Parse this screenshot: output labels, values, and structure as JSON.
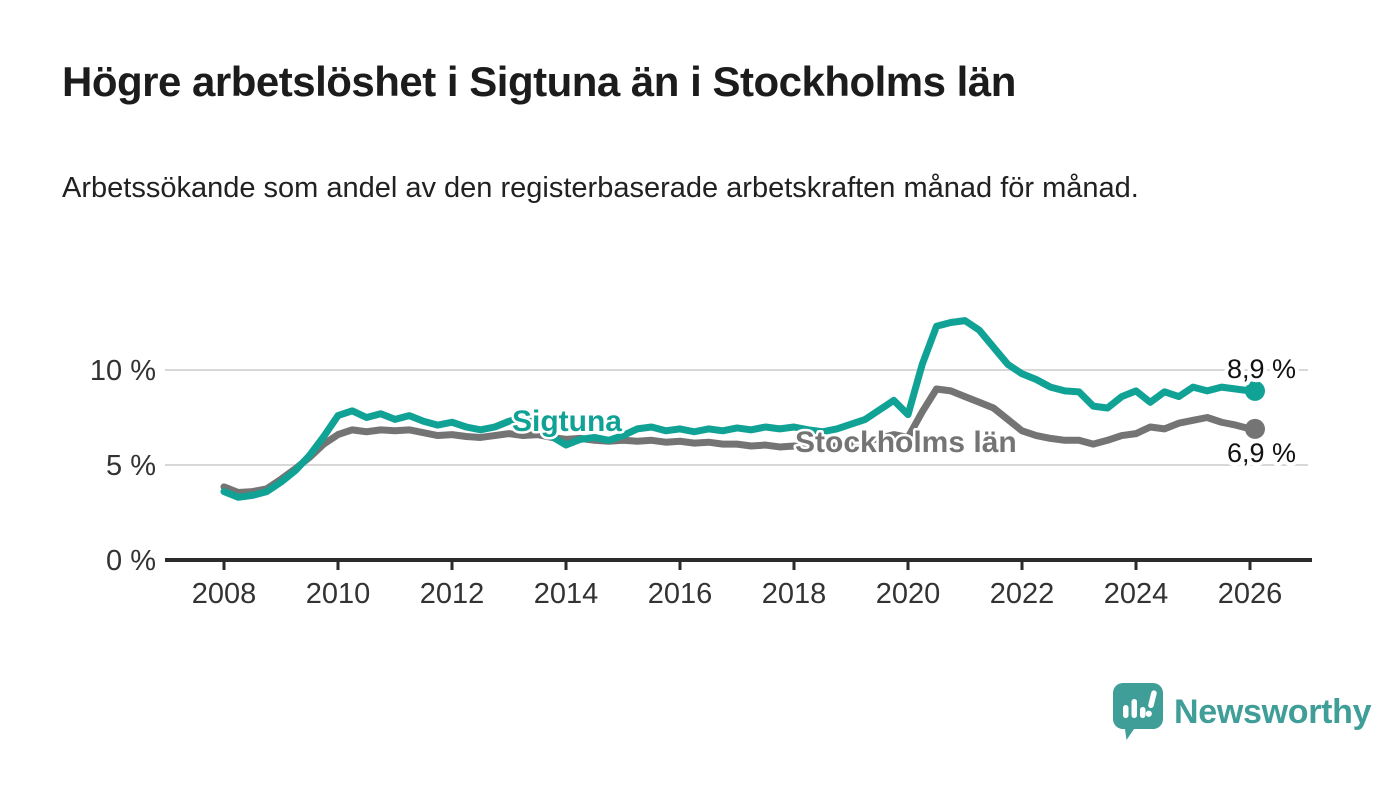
{
  "header": {
    "title": "Högre arbetslöshet i Sigtuna än i Stockholms län",
    "subtitle": "Arbetssökande som andel av den registerbaserade arbetskraften månad för månad."
  },
  "chart_data": {
    "type": "line",
    "title": "Högre arbetslöshet i Sigtuna än i Stockholms län",
    "xlabel": "",
    "ylabel": "",
    "unit": "%",
    "xlim": [
      2007.6,
      2026.6
    ],
    "ylim": [
      0,
      14.5
    ],
    "grid": "horizontal",
    "legend_position": "inline-labels",
    "x": [
      2008,
      2008.25,
      2008.5,
      2008.75,
      2009,
      2009.25,
      2009.5,
      2009.75,
      2010,
      2010.25,
      2010.5,
      2010.75,
      2011,
      2011.25,
      2011.5,
      2011.75,
      2012,
      2012.25,
      2012.5,
      2012.75,
      2013,
      2013.25,
      2013.5,
      2013.75,
      2014,
      2014.25,
      2014.5,
      2014.75,
      2015,
      2015.25,
      2015.5,
      2015.75,
      2016,
      2016.25,
      2016.5,
      2016.75,
      2017,
      2017.25,
      2017.5,
      2017.75,
      2018,
      2018.25,
      2018.5,
      2018.75,
      2019,
      2019.25,
      2019.5,
      2019.75,
      2020,
      2020.25,
      2020.5,
      2020.75,
      2021,
      2021.25,
      2021.5,
      2021.75,
      2022,
      2022.25,
      2022.5,
      2022.75,
      2023,
      2023.25,
      2023.5,
      2023.75,
      2024,
      2024.25,
      2024.5,
      2024.75,
      2025,
      2025.25,
      2025.5,
      2025.75,
      2026
    ],
    "series": [
      {
        "name": "Sigtuna",
        "color": "#11a296",
        "end_label": "8,9 %",
        "end_value": 8.9,
        "values": [
          3.6,
          3.3,
          3.4,
          3.6,
          4.1,
          4.7,
          5.5,
          6.5,
          7.6,
          7.85,
          7.5,
          7.7,
          7.4,
          7.6,
          7.3,
          7.1,
          7.25,
          7.0,
          6.85,
          7.0,
          7.3,
          7.55,
          7.4,
          6.5,
          6.05,
          6.35,
          6.45,
          6.3,
          6.55,
          6.9,
          7.0,
          6.8,
          6.9,
          6.75,
          6.9,
          6.8,
          6.95,
          6.85,
          7.0,
          6.9,
          7.0,
          6.85,
          6.75,
          6.9,
          7.15,
          7.4,
          7.9,
          8.4,
          7.65,
          10.3,
          12.3,
          12.5,
          12.6,
          12.1,
          11.2,
          10.3,
          9.8,
          9.5,
          9.1,
          8.9,
          8.85,
          8.1,
          8.0,
          8.6,
          8.9,
          8.3,
          8.85,
          8.6,
          9.1,
          8.9,
          9.1,
          9.0,
          8.9
        ]
      },
      {
        "name": "Stockholms län",
        "color": "#747474",
        "end_label": "6,9 %",
        "end_value": 6.9,
        "values": [
          3.85,
          3.55,
          3.6,
          3.75,
          4.25,
          4.8,
          5.4,
          6.1,
          6.6,
          6.85,
          6.75,
          6.85,
          6.8,
          6.85,
          6.7,
          6.55,
          6.6,
          6.5,
          6.45,
          6.55,
          6.65,
          6.55,
          6.6,
          6.45,
          6.35,
          6.4,
          6.3,
          6.25,
          6.3,
          6.25,
          6.3,
          6.2,
          6.25,
          6.15,
          6.2,
          6.1,
          6.1,
          6.0,
          6.05,
          5.95,
          6.0,
          5.9,
          5.95,
          6.0,
          6.15,
          6.25,
          6.4,
          6.6,
          6.45,
          7.8,
          9.0,
          8.9,
          8.6,
          8.3,
          8.0,
          7.4,
          6.8,
          6.55,
          6.4,
          6.3,
          6.3,
          6.1,
          6.3,
          6.55,
          6.65,
          7.0,
          6.9,
          7.2,
          7.35,
          7.5,
          7.25,
          7.1,
          6.9
        ]
      }
    ],
    "x_ticks": [
      {
        "value": 2008,
        "label": "2008"
      },
      {
        "value": 2010,
        "label": "2010"
      },
      {
        "value": 2012,
        "label": "2012"
      },
      {
        "value": 2014,
        "label": "2014"
      },
      {
        "value": 2016,
        "label": "2016"
      },
      {
        "value": 2018,
        "label": "2018"
      },
      {
        "value": 2020,
        "label": "2020"
      },
      {
        "value": 2022,
        "label": "2022"
      },
      {
        "value": 2024,
        "label": "2024"
      },
      {
        "value": 2026,
        "label": "2026"
      }
    ],
    "y_ticks": [
      {
        "value": 0,
        "label": "0 %",
        "gridline": false
      },
      {
        "value": 5,
        "label": "5 %",
        "gridline": true
      },
      {
        "value": 10,
        "label": "10 %",
        "gridline": true
      }
    ]
  },
  "footer": {
    "brand": "Newsworthy",
    "brand_color": "#3f9e97"
  }
}
